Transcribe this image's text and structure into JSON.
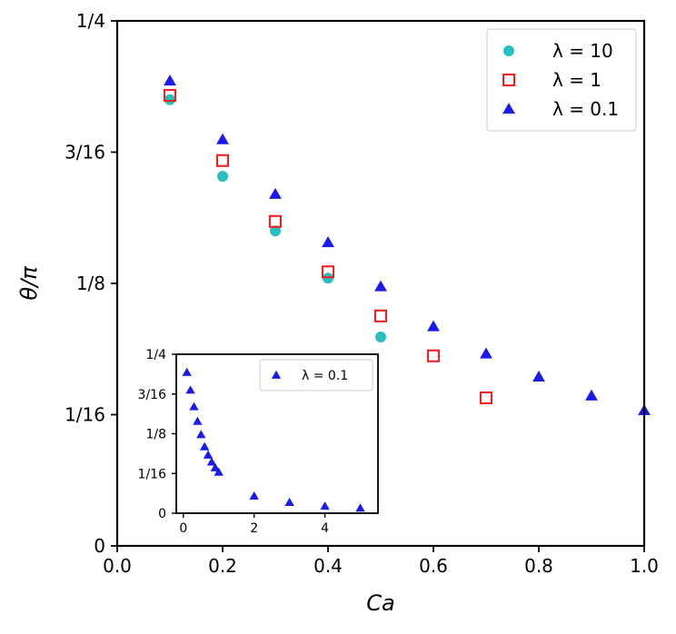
{
  "chart_data": [
    {
      "type": "scatter",
      "title": "",
      "xlabel": "Ca",
      "ylabel": "θ/π",
      "xlim": [
        0.0,
        1.0
      ],
      "ylim": [
        0,
        0.25
      ],
      "xticks": [
        0.0,
        0.2,
        0.4,
        0.6,
        0.8,
        1.0
      ],
      "xtick_labels": [
        "0.0",
        "0.2",
        "0.4",
        "0.6",
        "0.8",
        "1.0"
      ],
      "yticks": [
        0,
        0.0625,
        0.125,
        0.1875,
        0.25
      ],
      "ytick_labels": [
        "0",
        "1/16",
        "1/8",
        "3/16",
        "1/4"
      ],
      "grid": false,
      "legend_position": "top-right",
      "series": [
        {
          "name": "λ = 10",
          "marker": "circle",
          "color": "#2abfbf",
          "x": [
            0.1,
            0.2,
            0.3,
            0.4,
            0.5
          ],
          "y": [
            0.2125,
            0.176,
            0.15,
            0.1275,
            0.0995
          ]
        },
        {
          "name": "λ = 1",
          "marker": "square",
          "color": "#ee2222",
          "x": [
            0.1,
            0.2,
            0.3,
            0.4,
            0.5,
            0.6,
            0.7
          ],
          "y": [
            0.2145,
            0.1835,
            0.1545,
            0.1305,
            0.1095,
            0.0905,
            0.0705
          ]
        },
        {
          "name": "λ = 0.1",
          "marker": "triangle",
          "color": "#1a1aee",
          "x": [
            0.1,
            0.2,
            0.3,
            0.4,
            0.5,
            0.6,
            0.7,
            0.8,
            0.9,
            1.0
          ],
          "y": [
            0.2215,
            0.1935,
            0.1675,
            0.1445,
            0.1235,
            0.1045,
            0.0915,
            0.0805,
            0.0715,
            0.0645
          ]
        }
      ]
    },
    {
      "type": "scatter",
      "title": "",
      "xlabel": "",
      "ylabel": "",
      "xlim": [
        -0.2,
        5.5
      ],
      "ylim": [
        0,
        0.25
      ],
      "xticks": [
        0,
        2,
        4
      ],
      "xtick_labels": [
        "0",
        "2",
        "4"
      ],
      "yticks": [
        0,
        0.0625,
        0.125,
        0.1875,
        0.25
      ],
      "ytick_labels": [
        "0",
        "1/16",
        "1/8",
        "3/16",
        "1/4"
      ],
      "grid": false,
      "legend_position": "top-right",
      "series": [
        {
          "name": "λ = 0.1",
          "marker": "triangle",
          "color": "#1a1aee",
          "x": [
            0.1,
            0.2,
            0.3,
            0.4,
            0.5,
            0.6,
            0.7,
            0.8,
            0.9,
            1.0,
            2.0,
            3.0,
            4.0,
            5.0
          ],
          "y": [
            0.2215,
            0.1935,
            0.1675,
            0.1445,
            0.1235,
            0.1045,
            0.0915,
            0.0805,
            0.0715,
            0.0645,
            0.027,
            0.017,
            0.011,
            0.008
          ]
        }
      ]
    }
  ]
}
